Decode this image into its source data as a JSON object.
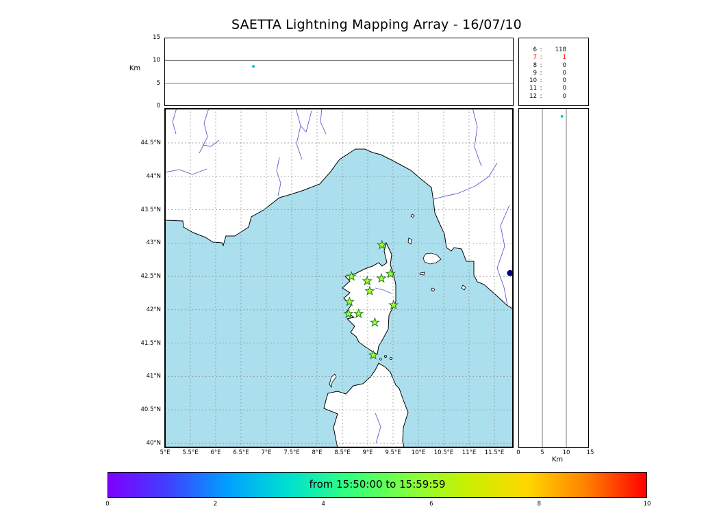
{
  "title": "SAETTA Lightning Mapping Array - 16/07/10",
  "alt_time_panel": {
    "ylabel": "Km",
    "yticks": [
      {
        "label": "15",
        "km": 15
      },
      {
        "label": "10",
        "km": 10
      },
      {
        "label": "5",
        "km": 5
      },
      {
        "label": "0",
        "km": 0
      }
    ]
  },
  "stats_panel": {
    "rows": [
      {
        "stations": "6",
        "count": "118",
        "color": "#000000"
      },
      {
        "stations": "7",
        "count": "1",
        "color": "#ff0000"
      },
      {
        "stations": "8",
        "count": "0",
        "color": "#000000"
      },
      {
        "stations": "9",
        "count": "0",
        "color": "#000000"
      },
      {
        "stations": "10",
        "count": "0",
        "color": "#000000"
      },
      {
        "stations": "11",
        "count": "0",
        "color": "#000000"
      },
      {
        "stations": "12",
        "count": "0",
        "color": "#000000"
      }
    ]
  },
  "map_panel": {
    "lat_ticks": [
      {
        "label": "44.5°N",
        "lat": 44.5
      },
      {
        "label": "44°N",
        "lat": 44.0
      },
      {
        "label": "43.5°N",
        "lat": 43.5
      },
      {
        "label": "43°N",
        "lat": 43.0
      },
      {
        "label": "42.5°N",
        "lat": 42.5
      },
      {
        "label": "42°N",
        "lat": 42.0
      },
      {
        "label": "41.5°N",
        "lat": 41.5
      },
      {
        "label": "41°N",
        "lat": 41.0
      },
      {
        "label": "40.5°N",
        "lat": 40.5
      },
      {
        "label": "40°N",
        "lat": 40.0
      }
    ],
    "lon_ticks": [
      {
        "label": "5°E",
        "lon": 5.0
      },
      {
        "label": "5.5°E",
        "lon": 5.5
      },
      {
        "label": "6°E",
        "lon": 6.0
      },
      {
        "label": "6.5°E",
        "lon": 6.5
      },
      {
        "label": "7°E",
        "lon": 7.0
      },
      {
        "label": "7.5°E",
        "lon": 7.5
      },
      {
        "label": "8°E",
        "lon": 8.0
      },
      {
        "label": "8.5°E",
        "lon": 8.5
      },
      {
        "label": "9°E",
        "lon": 9.0
      },
      {
        "label": "9.5°E",
        "lon": 9.5
      },
      {
        "label": "10°E",
        "lon": 10.0
      },
      {
        "label": "10.5°E",
        "lon": 10.5
      },
      {
        "label": "11°E",
        "lon": 11.0
      },
      {
        "label": "11.5°E",
        "lon": 11.5
      }
    ],
    "colors": {
      "sea": "#abdfed",
      "land": "#ffffff",
      "coast": "#000000",
      "river": "#5c5ccd",
      "grid": "#888888",
      "station_fill": "#aaff32",
      "station_edge": "#1e7d1e"
    }
  },
  "alt_lat_panel": {
    "xlabel": "Km",
    "xticks": [
      {
        "label": "0",
        "km": 0
      },
      {
        "label": "5",
        "km": 5
      },
      {
        "label": "10",
        "km": 10
      },
      {
        "label": "15",
        "km": 15
      }
    ]
  },
  "colorbar": {
    "label": "from 15:50:00 to 15:59:59",
    "max": 10,
    "ticks": [
      {
        "label": "0",
        "value": 0
      },
      {
        "label": "2",
        "value": 2
      },
      {
        "label": "4",
        "value": 4
      },
      {
        "label": "6",
        "value": 6
      },
      {
        "label": "8",
        "value": 8
      },
      {
        "label": "10",
        "value": 10
      }
    ],
    "colors": [
      "#7f00ff",
      "#4040ff",
      "#00a0ff",
      "#00e0d0",
      "#30ff80",
      "#80ff40",
      "#c8f000",
      "#ffd800",
      "#ff8000",
      "#ff0000"
    ]
  },
  "chart_data": {
    "type": "scatter",
    "title": "SAETTA Lightning Mapping Array - 16/07/10",
    "date": "16/07/10",
    "time_window": {
      "from": "15:50:00",
      "to": "15:59:59"
    },
    "map": {
      "lon_range": [
        5.0,
        11.88
      ],
      "lat_range": [
        39.93,
        45.02
      ],
      "grid": "dashed"
    },
    "altitude_axis_km": {
      "min": 0,
      "max": 15,
      "ticks": [
        0,
        5,
        10,
        15
      ]
    },
    "stations": [
      {
        "lon": 9.28,
        "lat": 42.97
      },
      {
        "lon": 8.68,
        "lat": 42.5
      },
      {
        "lon": 8.99,
        "lat": 42.43
      },
      {
        "lon": 9.27,
        "lat": 42.47
      },
      {
        "lon": 9.45,
        "lat": 42.54
      },
      {
        "lon": 9.04,
        "lat": 42.28
      },
      {
        "lon": 8.64,
        "lat": 42.12
      },
      {
        "lon": 9.51,
        "lat": 42.07
      },
      {
        "lon": 8.62,
        "lat": 41.94
      },
      {
        "lon": 8.82,
        "lat": 41.94
      },
      {
        "lon": 9.14,
        "lat": 41.81
      },
      {
        "lon": 9.11,
        "lat": 41.32
      }
    ],
    "sources": {
      "map_point": {
        "lon": 11.81,
        "lat": 42.55,
        "color": "#00008b"
      },
      "alt_time_point": {
        "time_fraction": 0.255,
        "alt_km": 8.7,
        "color": "#00cccc"
      },
      "alt_lat_point": {
        "alt_km": 9.1,
        "lat": 44.9,
        "color": "#00cccc"
      }
    },
    "stations_per_solution_histogram": {
      "categories": [
        "6",
        "7",
        "8",
        "9",
        "10",
        "11",
        "12"
      ],
      "values": [
        118,
        1,
        0,
        0,
        0,
        0,
        0
      ],
      "highlighted_category": "7",
      "highlight_color": "#ff0000"
    }
  }
}
